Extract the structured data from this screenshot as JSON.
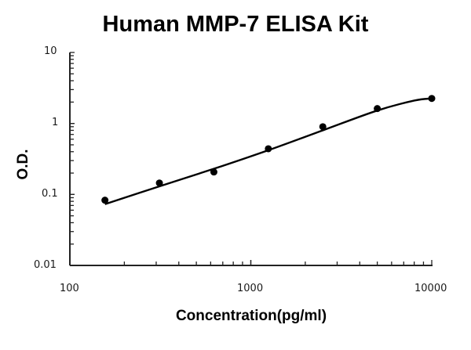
{
  "chart_data": {
    "type": "scatter",
    "title": "Human MMP-7 ELISA Kit",
    "xlabel": "Concentration(pg/ml)",
    "ylabel": "O.D.",
    "xscale": "log",
    "yscale": "log",
    "xlim": [
      100,
      10000
    ],
    "ylim": [
      0.01,
      10
    ],
    "x_ticks": [
      "100",
      "1000",
      "10000"
    ],
    "y_ticks": [
      "10",
      "1",
      "0.1",
      "0.01"
    ],
    "grid": false,
    "legend": null,
    "series": [
      {
        "name": "Standard points",
        "marker": "circle",
        "x": [
          156.25,
          312.5,
          625,
          1250,
          2500,
          5000,
          10000
        ],
        "y": [
          0.083,
          0.145,
          0.207,
          0.44,
          0.9,
          1.62,
          2.25
        ]
      },
      {
        "name": "Fitted curve",
        "style": "line",
        "x": [
          156.25,
          312.5,
          625,
          1250,
          2500,
          5000,
          8000,
          10000
        ],
        "y": [
          0.073,
          0.13,
          0.23,
          0.42,
          0.8,
          1.52,
          2.1,
          2.25
        ]
      }
    ]
  },
  "labels": {
    "title": "Human MMP-7 ELISA Kit",
    "xlabel": "Concentration(pg/ml)",
    "ylabel": "O.D.",
    "x_ticks": [
      "100",
      "1000",
      "10000"
    ],
    "y_ticks": [
      "10",
      "1",
      "0.1",
      "0.01"
    ]
  }
}
